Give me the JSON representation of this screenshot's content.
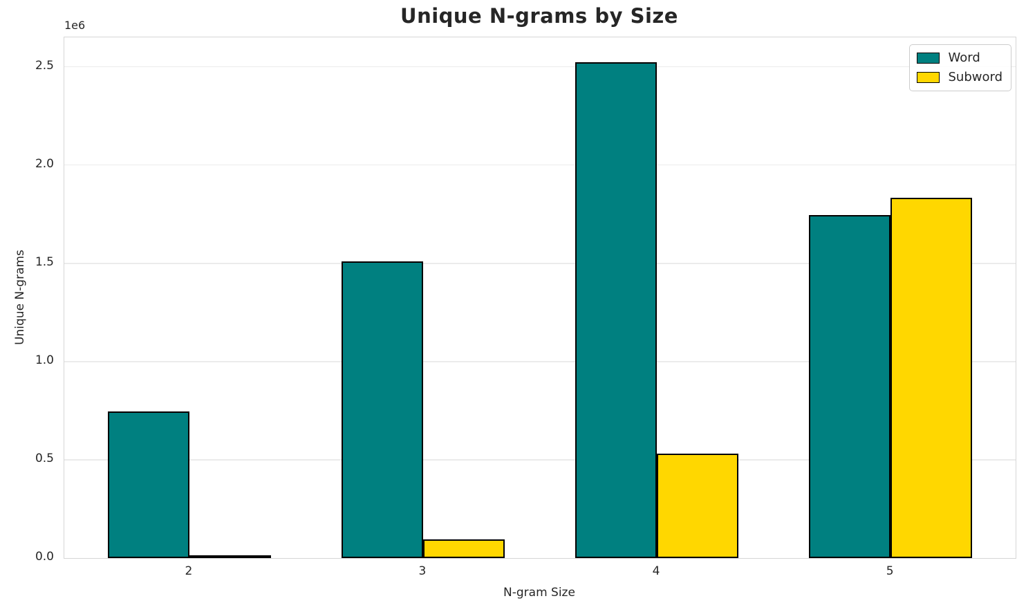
{
  "chart_data": {
    "type": "bar",
    "title": "Unique N-grams by Size",
    "xlabel": "N-gram Size",
    "ylabel": "Unique N-grams",
    "y_offset_label": "1e6",
    "categories": [
      "2",
      "3",
      "4",
      "5"
    ],
    "series": [
      {
        "name": "Word",
        "color": "#008080",
        "values": [
          745000,
          1510000,
          2525000,
          1745000
        ]
      },
      {
        "name": "Subword",
        "color": "#FFD700",
        "values": [
          15000,
          95000,
          530000,
          1835000
        ]
      }
    ],
    "ylim": [
      0,
      2650000
    ],
    "yticks": [
      0.0,
      0.5,
      1.0,
      1.5,
      2.0,
      2.5
    ],
    "ytick_labels": [
      "0.0",
      "0.5",
      "1.0",
      "1.5",
      "2.0",
      "2.5"
    ],
    "ytick_scale": 1000000,
    "grid": true,
    "legend_position": "upper right",
    "bar_edge_color": "#000000",
    "colors": {
      "text": "#262626",
      "grid": "#ebebeb",
      "spine": "#d6d6d6",
      "background": "#ffffff"
    }
  }
}
